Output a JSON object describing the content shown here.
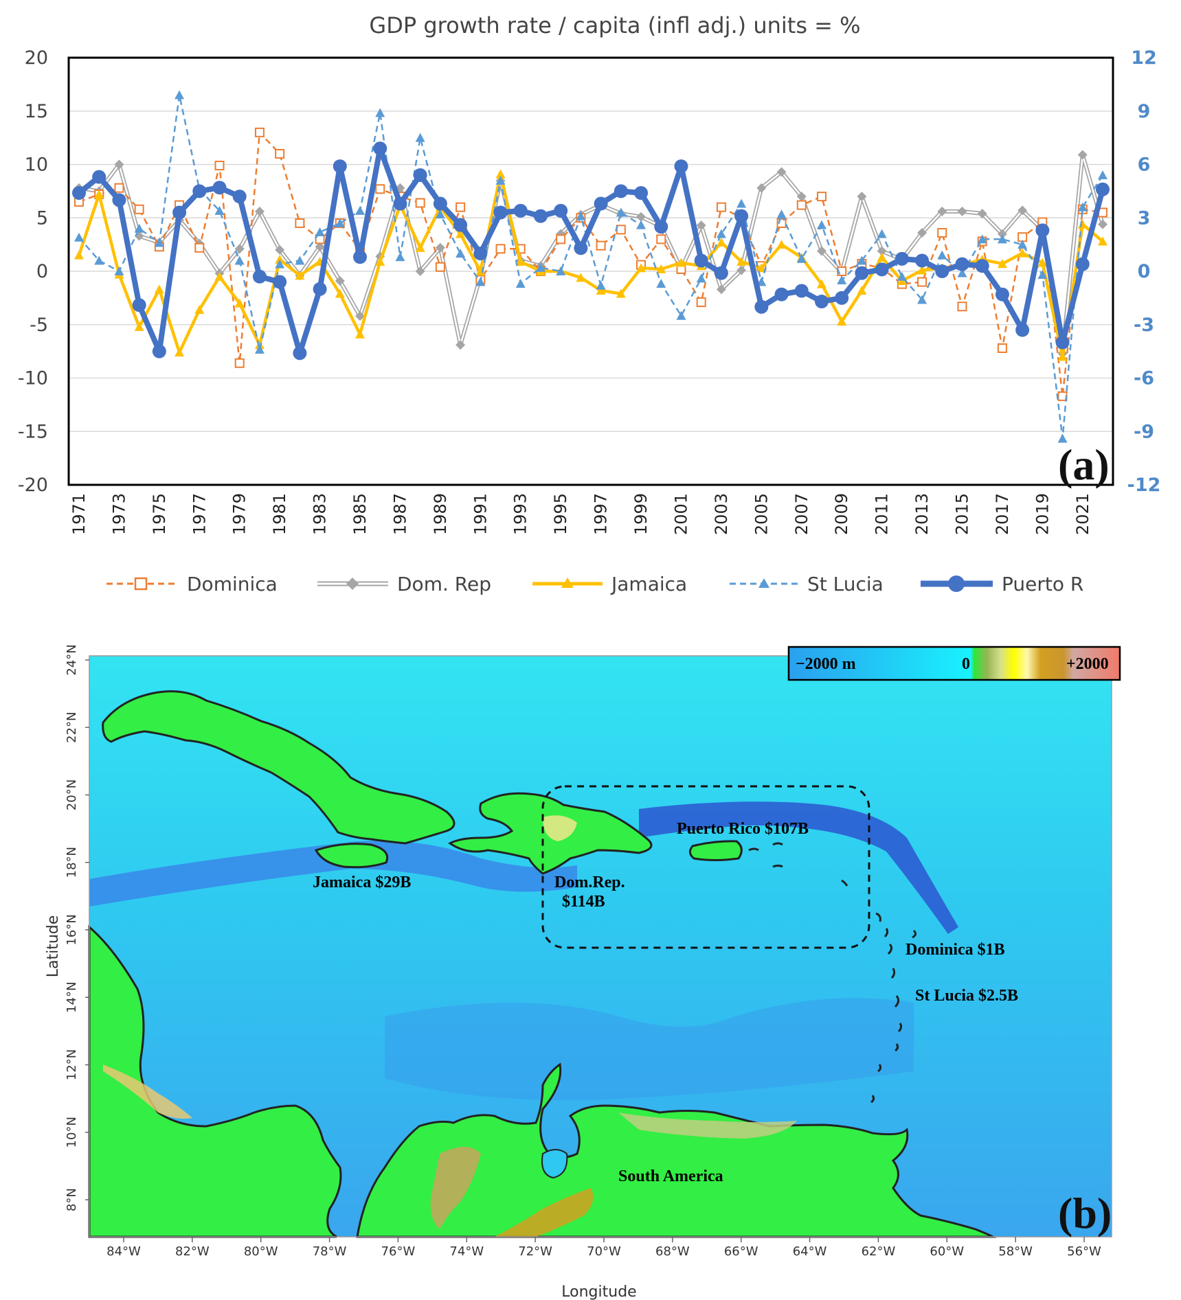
{
  "panel_a": {
    "title": "GDP growth rate / capita  (infl adj.)   units = %",
    "panel_label": "(a)",
    "left_ticks": [
      "20",
      "15",
      "10",
      "5",
      "0",
      "-5",
      "-10",
      "-15",
      "-20"
    ],
    "right_ticks": [
      "12",
      "9",
      "6",
      "3",
      "0",
      "-3",
      "-6",
      "-9",
      "-12"
    ],
    "x_tick_labels": [
      "1971",
      "1973",
      "1975",
      "1977",
      "1979",
      "1981",
      "1983",
      "1985",
      "1987",
      "1989",
      "1991",
      "1993",
      "1995",
      "1997",
      "1999",
      "2001",
      "2003",
      "2005",
      "2007",
      "2009",
      "2011",
      "2013",
      "2015",
      "2017",
      "2019",
      "2021"
    ],
    "legend": {
      "dominica": "Dominica",
      "domrep": "Dom. Rep",
      "jamaica": "Jamaica",
      "stlucia": "St Lucia",
      "puerto": "Puerto R"
    },
    "colors": {
      "dominica": "#ed7d31",
      "domrep": "#a5a5a5",
      "jamaica": "#ffc000",
      "stlucia": "#5b9bd5",
      "puerto": "#4472c4",
      "right_axis": "#4f8ac9"
    }
  },
  "chart_data": {
    "type": "line",
    "x": [
      1971,
      1972,
      1973,
      1974,
      1975,
      1976,
      1977,
      1978,
      1979,
      1980,
      1981,
      1982,
      1983,
      1984,
      1985,
      1986,
      1987,
      1988,
      1989,
      1990,
      1991,
      1992,
      1993,
      1994,
      1995,
      1996,
      1997,
      1998,
      1999,
      2000,
      2001,
      2002,
      2003,
      2004,
      2005,
      2006,
      2007,
      2008,
      2009,
      2010,
      2011,
      2012,
      2013,
      2014,
      2015,
      2016,
      2017,
      2018,
      2019,
      2020,
      2021,
      2022
    ],
    "y_left_lim": [
      -20,
      20
    ],
    "y_right_lim": [
      -12,
      12
    ],
    "series": [
      {
        "name": "Dominica",
        "axis": "left",
        "style": "dashed",
        "marker": "square",
        "values": [
          6.5,
          7.2,
          7.8,
          5.8,
          2.3,
          6.2,
          2.2,
          9.9,
          -8.6,
          13,
          11,
          4.5,
          3,
          4.5,
          2,
          7.7,
          7,
          6.4,
          0.4,
          6,
          -0.8,
          2.1,
          2.1,
          0,
          3,
          5,
          2.4,
          3.9,
          0.6,
          3,
          0.2,
          -2.9,
          6,
          5,
          0.5,
          4.5,
          6.2,
          7,
          0,
          0.7,
          0.3,
          -1.2,
          -1,
          3.6,
          -3.3,
          2.8,
          -7.2,
          3.2,
          4.6,
          -11.7,
          5.8,
          5.5
        ]
      },
      {
        "name": "Dom. Rep",
        "axis": "left",
        "style": "solid",
        "marker": "diamond",
        "values": [
          7.8,
          7.5,
          10,
          3.3,
          2.7,
          4.8,
          2.6,
          -0.2,
          2.1,
          5.6,
          2,
          -0.4,
          2.3,
          -0.9,
          -4.2,
          1.4,
          7.8,
          0,
          2.2,
          -6.9,
          -0.5,
          8.5,
          1,
          0.5,
          3.5,
          5.3,
          6.2,
          5.4,
          5.1,
          4.2,
          0.2,
          4.3,
          -1.7,
          0.1,
          7.8,
          9.3,
          7,
          1.9,
          -0.1,
          7,
          1.9,
          1.1,
          3.6,
          5.6,
          5.6,
          5.4,
          3.5,
          5.7,
          3.9,
          -7.7,
          10.9,
          4.4
        ]
      },
      {
        "name": "Jamaica",
        "axis": "left",
        "style": "solid",
        "marker": "triangle",
        "values": [
          1.5,
          7.2,
          -0.3,
          -5.2,
          -1.7,
          -7.6,
          -3.6,
          -0.5,
          -3,
          -6.9,
          1.1,
          -0.4,
          0.9,
          -2.1,
          -5.9,
          0.9,
          6.2,
          2.2,
          6,
          3.5,
          0,
          9.1,
          0.9,
          0,
          0,
          -0.6,
          -1.8,
          -2.1,
          0.3,
          0.2,
          0.8,
          0.5,
          2.7,
          0.9,
          0.3,
          2.5,
          1.3,
          -1.2,
          -4.7,
          -1.8,
          1.3,
          -0.9,
          0.1,
          0.3,
          0.6,
          1.1,
          0.7,
          1.7,
          0.8,
          -8,
          4.4,
          2.8
        ]
      },
      {
        "name": "St Lucia",
        "axis": "right",
        "style": "dashed",
        "marker": "triangle",
        "values": [
          1.9,
          0.6,
          0,
          2.4,
          1.6,
          9.9,
          4.6,
          3.4,
          0.6,
          -4.4,
          0.4,
          0.6,
          2.2,
          2.7,
          3.4,
          8.9,
          0.8,
          7.5,
          3.2,
          1,
          -0.6,
          5.1,
          -0.7,
          0.2,
          0,
          3.1,
          -0.8,
          3.3,
          2.6,
          -0.7,
          -2.5,
          -0.4,
          2.1,
          3.8,
          -0.6,
          3.2,
          0.7,
          2.6,
          -0.5,
          0.6,
          2.1,
          -0.3,
          -1.6,
          0.9,
          -0.1,
          1.8,
          1.8,
          1.5,
          -0.2,
          -9.4,
          3.6,
          5.4
        ]
      },
      {
        "name": "Puerto R",
        "axis": "right",
        "style": "solid",
        "marker": "circle",
        "values": [
          4.4,
          5.3,
          4,
          -1.9,
          -4.5,
          3.3,
          4.5,
          4.7,
          4.2,
          -0.3,
          -0.6,
          -4.6,
          -1,
          5.9,
          0.8,
          6.9,
          3.8,
          5.4,
          3.8,
          2.6,
          1,
          3.3,
          3.4,
          3.1,
          3.4,
          1.3,
          3.8,
          4.5,
          4.4,
          2.5,
          5.9,
          0.6,
          -0.1,
          3.1,
          -2,
          -1.3,
          -1.1,
          -1.7,
          -1.5,
          -0.1,
          0.1,
          0.7,
          0.6,
          0,
          0.4,
          0.3,
          -1.3,
          -3.3,
          2.3,
          -4,
          0.4,
          4.6
        ]
      }
    ]
  },
  "panel_b": {
    "panel_label": "(b)",
    "scale": {
      "low": "−2000 m",
      "zero": "0",
      "high": "+2000"
    },
    "y_axis_title": "Latitude",
    "x_axis_title": "Longitude",
    "lat_ticks": [
      "24°N",
      "22°N",
      "20°N",
      "18°N",
      "16°N",
      "14°N",
      "12°N",
      "10°N",
      "8°N"
    ],
    "lon_ticks": [
      "84°W",
      "82°W",
      "80°W",
      "78°W",
      "76°W",
      "74°W",
      "72°W",
      "70°W",
      "68°W",
      "66°W",
      "64°W",
      "62°W",
      "60°W",
      "58°W",
      "56°W"
    ],
    "labels": {
      "puerto": "Puerto Rico $107B",
      "jamaica": "Jamaica $29B",
      "domrep1": "Dom.Rep.",
      "domrep2": "$114B",
      "dominica": "Dominica $1B",
      "stlucia": "St Lucia $2.5B",
      "southam": "South America"
    }
  }
}
